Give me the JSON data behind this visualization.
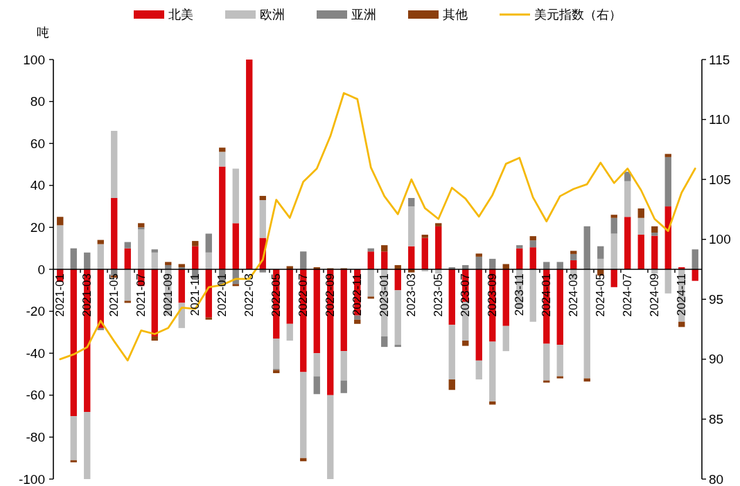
{
  "chart_data": {
    "type": "bar",
    "stacked": true,
    "ylabel": "吨",
    "legend": "top",
    "categories": [
      "2021-01",
      null,
      "2021-03",
      null,
      "2021-05",
      null,
      "2021-07",
      null,
      "2021-09",
      null,
      "2021-11",
      null,
      "2022-01",
      null,
      "2022-03",
      null,
      "2022-05",
      null,
      "2022-07",
      null,
      "2022-09",
      null,
      "2022-11",
      null,
      "2023-01",
      null,
      "2023-03",
      null,
      "2023-05",
      null,
      "2023-07",
      null,
      "2023-09",
      null,
      "2023-11",
      null,
      "2024-01",
      null,
      "2024-03",
      null,
      "2024-05",
      null,
      "2024-07",
      null,
      "2024-09",
      null,
      "2024-11",
      null
    ],
    "series": [
      {
        "name": "北美",
        "color": "#d9070e",
        "values": [
          -6,
          -70,
          -68,
          -28,
          34,
          10,
          -8,
          -32,
          null,
          -16,
          11,
          -23,
          49,
          22,
          100,
          15,
          -33,
          -26,
          -49,
          -40,
          -60,
          -39,
          -22,
          8.5,
          8.5,
          -10,
          11,
          15,
          20.5,
          -26.5,
          -15.5,
          -43.5,
          -34.5,
          -27,
          10,
          10.5,
          -35.5,
          -36,
          4.3,
          0,
          0,
          -8.5,
          25,
          16.5,
          16,
          30,
          1,
          -5.5
        ]
      },
      {
        "name": "欧洲",
        "color": "#bfbfbf",
        "values": [
          21,
          -21,
          -32,
          12,
          32,
          -15,
          19,
          8,
          -22,
          -12,
          0,
          8,
          7,
          26,
          0,
          18,
          -14.5,
          -8,
          -41,
          -11,
          -40,
          -14,
          0,
          -13,
          -32,
          -26,
          19,
          -1,
          -2,
          -26,
          -18.5,
          -9,
          -28.5,
          -12,
          -19,
          -25,
          -17.5,
          -15,
          -5,
          -52,
          5,
          17,
          17,
          8,
          -2,
          -11.5,
          -25,
          0
        ]
      },
      {
        "name": "亚洲",
        "color": "#858585",
        "values": [
          0,
          10,
          8,
          -1,
          -3,
          3,
          1,
          1.5,
          2,
          1,
          -5,
          9,
          -8,
          -7,
          0,
          -1.5,
          -0.5,
          0,
          8.5,
          -8.5,
          0,
          -6,
          -2,
          1.5,
          -5,
          -1,
          4,
          0,
          0,
          1,
          2,
          6,
          5,
          0,
          1.5,
          3.3,
          3.5,
          3.5,
          3,
          20.5,
          6,
          7.5,
          4.5,
          0,
          1.5,
          23.5,
          0,
          9.5
        ]
      },
      {
        "name": "其他",
        "color": "#8b3e0c",
        "values": [
          4,
          -1,
          0,
          2,
          -1,
          -1,
          2,
          -2,
          1.5,
          1.5,
          2.5,
          -1,
          2,
          -1,
          0,
          2,
          -1.5,
          1.5,
          -1.5,
          1,
          0.5,
          0.5,
          -2,
          -1,
          3,
          2,
          -1.5,
          1.5,
          1.5,
          -5,
          -2.5,
          1.5,
          -1.5,
          2.5,
          null,
          2,
          -1,
          -1,
          1.5,
          -1.5,
          -3,
          1.5,
          null,
          4.5,
          3,
          1.5,
          -2.5,
          0
        ]
      },
      {
        "name": "美元指数（右）",
        "color": "#f5b90a",
        "type": "line",
        "axis": "y2",
        "values": [
          90.0,
          90.4,
          91.0,
          93.2,
          91.5,
          89.9,
          92.4,
          92.1,
          92.6,
          94.3,
          94.2,
          96.0,
          96.2,
          96.7,
          96.7,
          98.3,
          103.3,
          101.8,
          104.8,
          105.9,
          108.6,
          112.2,
          111.7,
          106.0,
          103.6,
          102.1,
          105.0,
          102.6,
          101.7,
          104.3,
          103.4,
          101.9,
          103.7,
          106.3,
          106.8,
          103.5,
          101.5,
          103.6,
          104.2,
          104.6,
          106.4,
          104.7,
          105.9,
          104.1,
          101.7,
          100.7,
          103.9,
          105.9
        ]
      }
    ],
    "ylim": [
      -100,
      100
    ],
    "yticks": [
      -100,
      -80,
      -60,
      -40,
      -20,
      0,
      20,
      40,
      60,
      80,
      100
    ],
    "y2lim": [
      80,
      115
    ],
    "y2ticks": [
      80,
      85,
      90,
      95,
      100,
      105,
      110,
      115
    ]
  }
}
